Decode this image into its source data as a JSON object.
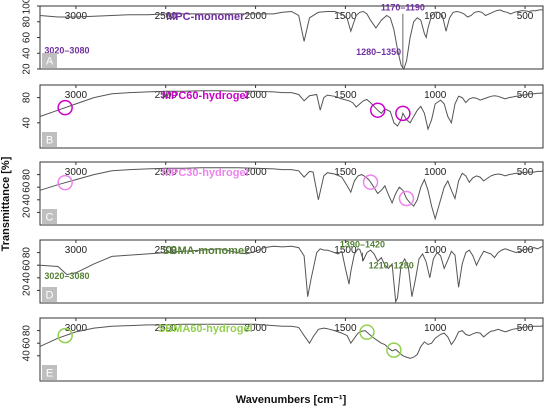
{
  "chart_data": {
    "type": "line",
    "xlabel": "Wavenumbers [cm⁻¹]",
    "ylabel": "Transmittance [%]",
    "xlim": [
      3200,
      400
    ],
    "x_ticks": [
      3000,
      2500,
      2000,
      1500,
      1000,
      500
    ],
    "grid": false,
    "panels": [
      {
        "letter": "A",
        "title": "MPC-monomer",
        "color": "#7030a0",
        "ylim": [
          20,
          100
        ],
        "y_ticks": [
          20,
          40,
          60,
          80,
          100
        ],
        "annotations": [
          {
            "text": "3020–3080",
            "x": 3050,
            "y": 40
          },
          {
            "text": "1170–1190",
            "x": 1180,
            "y": 94
          },
          {
            "text": "1280–1350",
            "x": 1315,
            "y": 38
          }
        ],
        "circles": [],
        "series": [
          {
            "x": [
              3200,
              3100,
              3000,
              2900,
              2800,
              2700,
              2600,
              2500,
              2400,
              2300,
              2200,
              2100,
              2000,
              1900,
              1850,
              1800,
              1760,
              1730,
              1700,
              1650,
              1600,
              1560,
              1520,
              1490,
              1470,
              1440,
              1420,
              1400,
              1380,
              1360,
              1330,
              1300,
              1270,
              1250,
              1230,
              1210,
              1190,
              1175,
              1160,
              1140,
              1120,
              1100,
              1080,
              1060,
              1050,
              1040,
              1020,
              1000,
              980,
              960,
              940,
              920,
              900,
              880,
              860,
              840,
              820,
              800,
              780,
              760,
              740,
              720,
              700,
              680,
              660,
              640,
              620,
              600,
              580,
              560,
              540,
              520,
              500,
              480,
              460,
              440,
              420,
              400
            ],
            "y": [
              88,
              86,
              86,
              87,
              88,
              89,
              89,
              90,
              90,
              90,
              90,
              90,
              90,
              90,
              92,
              93,
              88,
              55,
              85,
              92,
              93,
              93,
              90,
              84,
              68,
              88,
              92,
              93,
              90,
              82,
              72,
              82,
              88,
              85,
              70,
              45,
              25,
              20,
              30,
              60,
              80,
              85,
              82,
              65,
              60,
              72,
              88,
              92,
              92,
              88,
              68,
              85,
              92,
              93,
              92,
              90,
              86,
              88,
              92,
              93,
              92,
              88,
              90,
              92,
              94,
              95,
              93,
              92,
              90,
              92,
              93,
              94,
              94,
              93,
              94,
              94,
              95,
              95
            ]
          }
        ]
      },
      {
        "letter": "B",
        "title": "MPC60-hydrogel",
        "color": "#cc00cc",
        "ylim": [
          0,
          100
        ],
        "y_ticks": [
          40,
          80
        ],
        "annotations": [],
        "circles": [
          {
            "x": 3060
          },
          {
            "x": 1320
          },
          {
            "x": 1180
          }
        ],
        "series": [
          {
            "x": [
              3200,
              3100,
              3000,
              2900,
              2800,
              2700,
              2600,
              2500,
              2400,
              2300,
              2200,
              2100,
              2000,
              1900,
              1850,
              1800,
              1760,
              1730,
              1700,
              1660,
              1640,
              1620,
              1600,
              1560,
              1520,
              1480,
              1460,
              1440,
              1420,
              1400,
              1380,
              1360,
              1320,
              1300,
              1280,
              1250,
              1230,
              1210,
              1190,
              1180,
              1170,
              1160,
              1140,
              1120,
              1100,
              1080,
              1060,
              1040,
              1020,
              1000,
              970,
              950,
              930,
              910,
              890,
              870,
              850,
              830,
              810,
              790,
              770,
              750,
              730,
              710,
              690,
              670,
              650,
              630,
              610,
              590,
              570,
              550,
              530,
              510,
              490,
              470,
              450,
              430,
              410,
              400
            ],
            "y": [
              50,
              60,
              70,
              80,
              86,
              88,
              89,
              90,
              90,
              91,
              91,
              90,
              90,
              89,
              88,
              88,
              85,
              75,
              83,
              85,
              60,
              80,
              84,
              82,
              78,
              75,
              72,
              65,
              70,
              75,
              77,
              72,
              60,
              55,
              62,
              58,
              40,
              35,
              45,
              55,
              50,
              45,
              40,
              50,
              60,
              66,
              55,
              30,
              45,
              70,
              76,
              70,
              50,
              40,
              70,
              82,
              80,
              72,
              78,
              80,
              79,
              76,
              78,
              80,
              82,
              83,
              82,
              80,
              78,
              80,
              81,
              82,
              83,
              84,
              85,
              86,
              86,
              87,
              87,
              88
            ]
          }
        ]
      },
      {
        "letter": "C",
        "title": "MPC30-hydrogel",
        "color": "#ee82ee",
        "ylim": [
          0,
          100
        ],
        "y_ticks": [
          20,
          40,
          60,
          80
        ],
        "annotations": [],
        "circles": [
          {
            "x": 3060
          },
          {
            "x": 1360
          },
          {
            "x": 1160
          }
        ],
        "series": [
          {
            "x": [
              3200,
              3100,
              3000,
              2900,
              2800,
              2700,
              2600,
              2500,
              2400,
              2300,
              2200,
              2100,
              2000,
              1900,
              1850,
              1800,
              1760,
              1730,
              1700,
              1680,
              1650,
              1620,
              1600,
              1560,
              1520,
              1490,
              1470,
              1450,
              1430,
              1410,
              1390,
              1370,
              1350,
              1320,
              1300,
              1280,
              1260,
              1240,
              1220,
              1200,
              1180,
              1160,
              1140,
              1120,
              1100,
              1080,
              1060,
              1040,
              1020,
              1000,
              970,
              950,
              930,
              910,
              890,
              870,
              850,
              830,
              810,
              790,
              770,
              750,
              730,
              710,
              690,
              670,
              650,
              630,
              610,
              590,
              570,
              550,
              530,
              510,
              490,
              470,
              450,
              430,
              410,
              400
            ],
            "y": [
              55,
              64,
              72,
              80,
              86,
              88,
              89,
              90,
              90,
              91,
              91,
              91,
              90,
              89,
              88,
              88,
              86,
              76,
              85,
              84,
              40,
              78,
              83,
              81,
              76,
              62,
              52,
              70,
              78,
              80,
              77,
              72,
              64,
              50,
              55,
              62,
              48,
              35,
              50,
              60,
              55,
              42,
              35,
              30,
              40,
              60,
              72,
              55,
              30,
              10,
              40,
              60,
              70,
              55,
              42,
              70,
              82,
              78,
              68,
              75,
              78,
              76,
              70,
              74,
              78,
              80,
              81,
              80,
              78,
              80,
              81,
              82,
              82,
              83,
              84,
              84,
              84,
              85,
              85,
              86
            ]
          }
        ]
      },
      {
        "letter": "D",
        "title": "SBMA-monomer",
        "color": "#548235",
        "ylim": [
          0,
          100
        ],
        "y_ticks": [
          20,
          40,
          60,
          80
        ],
        "annotations": [
          {
            "text": "1390–1420",
            "x": 1405,
            "y": 88
          },
          {
            "text": "1210–1280",
            "x": 1245,
            "y": 55
          },
          {
            "text": "3020–3080",
            "x": 3050,
            "y": 38
          }
        ],
        "circles": [],
        "series": [
          {
            "x": [
              3200,
              3100,
              3050,
              3000,
              2950,
              2900,
              2850,
              2800,
              2700,
              2600,
              2500,
              2400,
              2300,
              2200,
              2100,
              2050,
              2000,
              1950,
              1900,
              1850,
              1800,
              1760,
              1730,
              1710,
              1690,
              1660,
              1640,
              1620,
              1600,
              1580,
              1560,
              1540,
              1520,
              1500,
              1480,
              1470,
              1450,
              1430,
              1420,
              1400,
              1380,
              1360,
              1340,
              1320,
              1300,
              1280,
              1260,
              1240,
              1220,
              1210,
              1190,
              1170,
              1150,
              1130,
              1110,
              1090,
              1070,
              1050,
              1030,
              1010,
              990,
              970,
              950,
              930,
              910,
              890,
              870,
              850,
              830,
              810,
              790,
              770,
              750,
              730,
              710,
              690,
              670,
              650,
              630,
              610,
              590,
              570,
              550,
              530,
              510,
              490,
              470,
              450,
              430,
              410,
              400
            ],
            "y": [
              60,
              58,
              45,
              48,
              55,
              62,
              68,
              74,
              76,
              78,
              80,
              82,
              84,
              86,
              80,
              78,
              82,
              88,
              90,
              89,
              90,
              88,
              75,
              10,
              40,
              80,
              86,
              84,
              84,
              82,
              80,
              78,
              82,
              55,
              30,
              50,
              78,
              86,
              85,
              68,
              80,
              84,
              78,
              66,
              72,
              60,
              55,
              62,
              2,
              8,
              60,
              70,
              58,
              10,
              38,
              70,
              78,
              65,
              40,
              70,
              80,
              75,
              55,
              68,
              82,
              76,
              25,
              62,
              80,
              84,
              75,
              60,
              72,
              82,
              80,
              78,
              72,
              80,
              84,
              86,
              84,
              82,
              80,
              82,
              84,
              86,
              85,
              88,
              86,
              89,
              90
            ]
          }
        ]
      },
      {
        "letter": "E",
        "title": "SBMA60-hydrogel",
        "color": "#92d050",
        "ylim": [
          0,
          100
        ],
        "y_ticks": [
          40,
          60,
          80
        ],
        "annotations": [],
        "circles": [
          {
            "x": 3060
          },
          {
            "x": 1380
          },
          {
            "x": 1230
          }
        ],
        "series": [
          {
            "x": [
              3200,
              3100,
              3000,
              2900,
              2800,
              2700,
              2600,
              2500,
              2400,
              2300,
              2200,
              2100,
              2000,
              1900,
              1850,
              1800,
              1760,
              1730,
              1700,
              1680,
              1650,
              1620,
              1600,
              1560,
              1520,
              1490,
              1470,
              1450,
              1430,
              1410,
              1390,
              1370,
              1350,
              1320,
              1300,
              1280,
              1260,
              1240,
              1220,
              1200,
              1180,
              1160,
              1140,
              1120,
              1100,
              1080,
              1060,
              1040,
              1020,
              1000,
              970,
              950,
              930,
              910,
              890,
              870,
              850,
              830,
              810,
              790,
              770,
              750,
              730,
              710,
              690,
              670,
              650,
              630,
              610,
              590,
              570,
              550,
              530,
              510,
              490,
              470,
              450,
              430,
              410,
              400
            ],
            "y": [
              55,
              68,
              78,
              84,
              87,
              88,
              89,
              89,
              90,
              90,
              90,
              90,
              90,
              88,
              87,
              87,
              85,
              72,
              60,
              70,
              82,
              84,
              83,
              80,
              76,
              72,
              60,
              68,
              76,
              79,
              80,
              75,
              70,
              64,
              60,
              58,
              52,
              48,
              50,
              45,
              40,
              38,
              36,
              38,
              42,
              55,
              62,
              58,
              60,
              68,
              74,
              76,
              70,
              58,
              66,
              78,
              80,
              74,
              72,
              75,
              77,
              76,
              70,
              75,
              79,
              80,
              82,
              80,
              78,
              80,
              82,
              83,
              84,
              85,
              86,
              86,
              87,
              87,
              87,
              88
            ]
          }
        ]
      }
    ]
  }
}
